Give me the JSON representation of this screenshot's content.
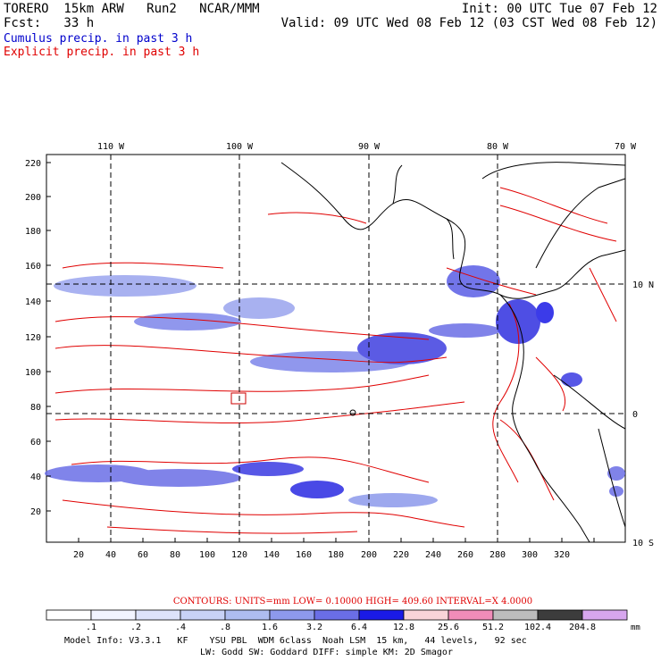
{
  "header": {
    "line1_left": "TORERO  15km ARW   Run2   NCAR/MMM",
    "line1_right": "Init: 00 UTC Tue 07 Feb 12",
    "line2_left": "Fcst:   33 h",
    "line2_right": "Valid: 09 UTC Wed 08 Feb 12 (03 CST Wed 08 Feb 12)",
    "legend_cumulus": "Cumulus precip. in past 3 h",
    "legend_explicit": "Explicit precip. in past 3 h"
  },
  "colors": {
    "cumulus_text": "#0000cc",
    "explicit_text": "#e00000",
    "contour": "#e00000",
    "land": "#000000"
  },
  "map": {
    "top_lon_labels": [
      "110 W",
      "100 W",
      "90 W",
      "80 W",
      "70 W"
    ],
    "right_lat_labels": [
      "10 N",
      "0",
      "10 S"
    ],
    "y_grid_labels": [
      "220",
      "200",
      "180",
      "160",
      "140",
      "120",
      "100",
      "80",
      "60",
      "40",
      "20"
    ],
    "x_grid_labels": [
      "20",
      "40",
      "60",
      "80",
      "100",
      "120",
      "140",
      "160",
      "180",
      "200",
      "220",
      "240",
      "260",
      "280",
      "300",
      "320"
    ]
  },
  "contour_info": {
    "text": "CONTOURS:  UNITS=mm  LOW= 0.10000     HIGH=  409.60     INTERVAL=X  4.0000"
  },
  "colorbar": {
    "labels": [
      ".1",
      ".2",
      ".4",
      ".8",
      "1.6",
      "3.2",
      "6.4",
      "12.8",
      "25.6",
      "51.2",
      "102.4",
      "204.8"
    ],
    "unit": "mm",
    "colors": [
      "#ffffff",
      "#f2f4ff",
      "#dde3fb",
      "#c8d2f6",
      "#aebdf0",
      "#8d99ec",
      "#6a6ee6",
      "#1a1ae6",
      "#f9d4d8",
      "#f08cb8",
      "#bcbcbc",
      "#3c3c3c",
      "#d7a6ee"
    ]
  },
  "footer": {
    "line1": "Model Info: V3.3.1   KF    YSU PBL  WDM 6class  Noah LSM  15 km,   44 levels,   92 sec",
    "line2": "LW: Godd SW: Goddard DIFF: simple KM: 2D Smagor"
  }
}
